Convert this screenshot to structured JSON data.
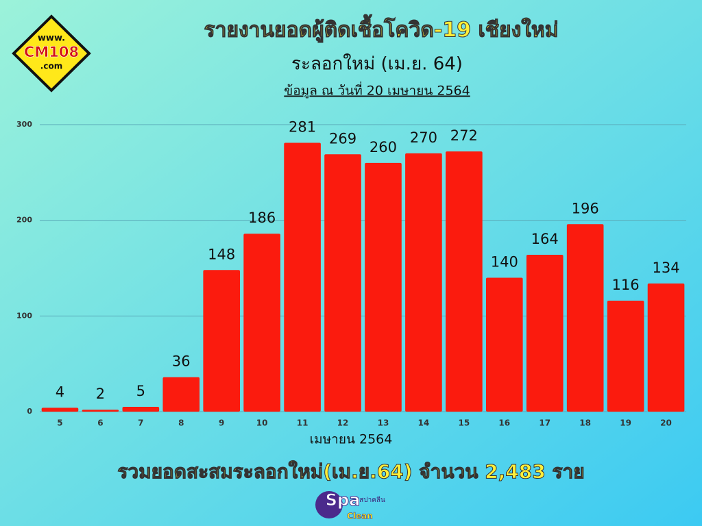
{
  "chart_data": {
    "type": "bar",
    "title": "รายงานยอดผู้ติดเชื้อโควิด-19 เชียงใหม่",
    "subtitle": "ระลอกใหม่ (เม.ย. 64)",
    "note": "ข้อมูล ณ วันที่ 20 เมษายน 2564",
    "x_label": "เมษายน 2564",
    "summary": "รวมยอดสะสมระลอกใหม่(เม.ย.64) จำนวน 2,483 ราย",
    "categories": [
      "5",
      "6",
      "7",
      "8",
      "9",
      "10",
      "11",
      "12",
      "13",
      "14",
      "15",
      "16",
      "17",
      "18",
      "19",
      "20"
    ],
    "values": [
      4,
      2,
      5,
      36,
      148,
      186,
      281,
      269,
      260,
      270,
      272,
      140,
      164,
      196,
      116,
      134
    ],
    "color": "#fb1b0e",
    "ylim": [
      0,
      300
    ],
    "yticks": [
      0,
      100,
      200,
      300
    ],
    "grid": true
  },
  "logos": {
    "top_left": [
      "www.",
      "CM108",
      ".com"
    ],
    "bottom": [
      "Spa",
      "สปาคลีน",
      "Clean"
    ]
  }
}
